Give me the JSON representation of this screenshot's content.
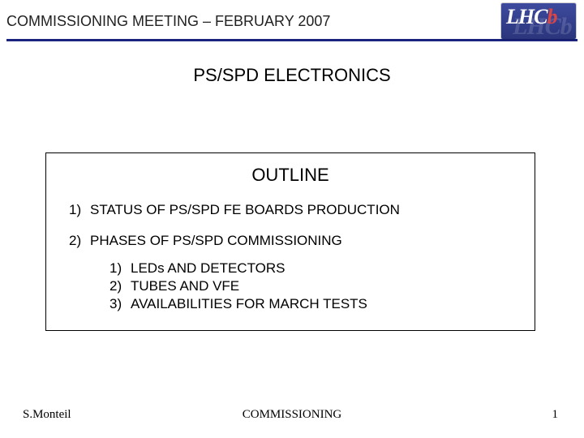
{
  "header": {
    "title": "COMMISSIONING MEETING – FEBRUARY  2007",
    "underline_color": "#1a237e"
  },
  "logo": {
    "text_main": "LHC",
    "text_accent": "b",
    "bg_gradient_top": "#3e4a9e",
    "bg_gradient_bottom": "#2a357c",
    "accent_color": "#d44444"
  },
  "slide_title": "PS/SPD ELECTRONICS",
  "outline": {
    "heading": "OUTLINE",
    "items": [
      {
        "num": "1)",
        "text": "STATUS OF PS/SPD FE BOARDS PRODUCTION"
      },
      {
        "num": "2)",
        "text": "PHASES OF PS/SPD COMMISSIONING"
      }
    ],
    "subitems": [
      {
        "num": "1)",
        "text": "LEDs AND DETECTORS"
      },
      {
        "num": "2)",
        "text": "TUBES AND VFE"
      },
      {
        "num": "3)",
        "text": "AVAILABILITIES FOR MARCH TESTS"
      }
    ]
  },
  "footer": {
    "author": "S.Monteil",
    "center": "COMMISSIONING",
    "page": "1"
  },
  "colors": {
    "text": "#000000",
    "background": "#ffffff"
  }
}
